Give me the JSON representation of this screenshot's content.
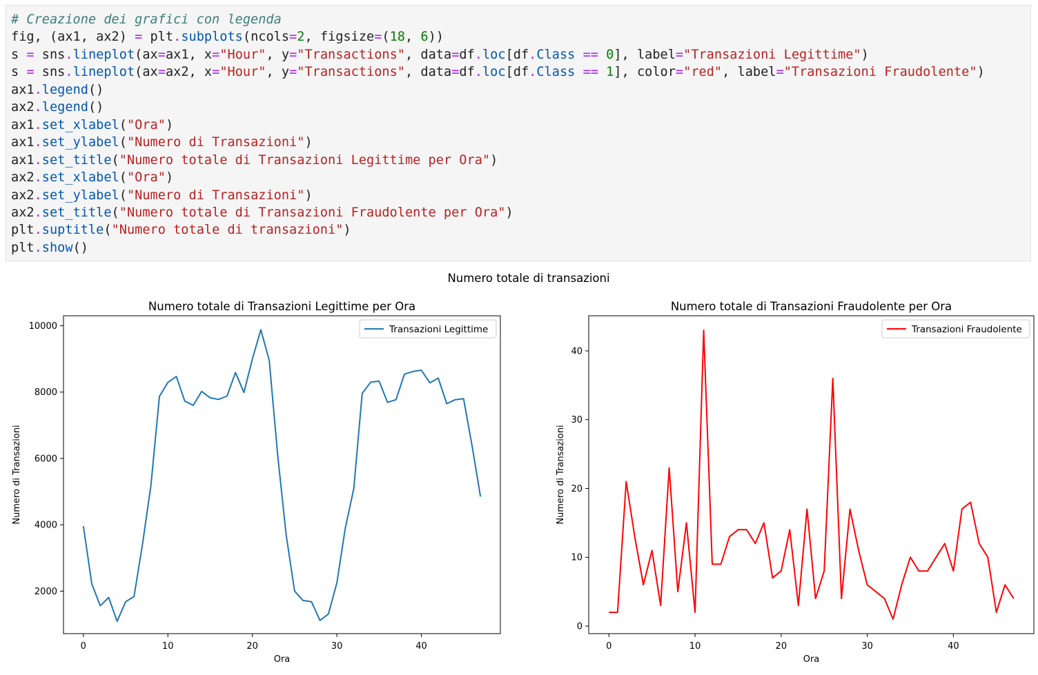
{
  "code": {
    "lines": [
      [
        {
          "c": "cm",
          "t": "# Creazione dei grafici con legenda"
        }
      ],
      [
        {
          "c": "bd",
          "t": "fig, (ax1, ax2) "
        },
        {
          "c": "op",
          "t": "="
        },
        {
          "c": "bd",
          "t": " plt"
        },
        {
          "c": "op",
          "t": "."
        },
        {
          "c": "fn",
          "t": "subplots"
        },
        {
          "c": "bd",
          "t": "(ncols"
        },
        {
          "c": "op",
          "t": "="
        },
        {
          "c": "nm",
          "t": "2"
        },
        {
          "c": "bd",
          "t": ", figsize"
        },
        {
          "c": "op",
          "t": "="
        },
        {
          "c": "bd",
          "t": "("
        },
        {
          "c": "nm",
          "t": "18"
        },
        {
          "c": "bd",
          "t": ", "
        },
        {
          "c": "nm",
          "t": "6"
        },
        {
          "c": "bd",
          "t": "))"
        }
      ],
      [
        {
          "c": "bd",
          "t": "s "
        },
        {
          "c": "op",
          "t": "="
        },
        {
          "c": "bd",
          "t": " sns"
        },
        {
          "c": "op",
          "t": "."
        },
        {
          "c": "fn",
          "t": "lineplot"
        },
        {
          "c": "bd",
          "t": "(ax"
        },
        {
          "c": "op",
          "t": "="
        },
        {
          "c": "bd",
          "t": "ax1, x"
        },
        {
          "c": "op",
          "t": "="
        },
        {
          "c": "st",
          "t": "\"Hour\""
        },
        {
          "c": "bd",
          "t": ", y"
        },
        {
          "c": "op",
          "t": "="
        },
        {
          "c": "st",
          "t": "\"Transactions\""
        },
        {
          "c": "bd",
          "t": ", data"
        },
        {
          "c": "op",
          "t": "="
        },
        {
          "c": "bd",
          "t": "df"
        },
        {
          "c": "op",
          "t": "."
        },
        {
          "c": "fn",
          "t": "loc"
        },
        {
          "c": "bd",
          "t": "[df"
        },
        {
          "c": "op",
          "t": "."
        },
        {
          "c": "fn",
          "t": "Class"
        },
        {
          "c": "bd",
          "t": " "
        },
        {
          "c": "op",
          "t": "=="
        },
        {
          "c": "bd",
          "t": " "
        },
        {
          "c": "nm",
          "t": "0"
        },
        {
          "c": "bd",
          "t": "], label"
        },
        {
          "c": "op",
          "t": "="
        },
        {
          "c": "st",
          "t": "\"Transazioni Legittime\""
        },
        {
          "c": "bd",
          "t": ")"
        }
      ],
      [
        {
          "c": "bd",
          "t": "s "
        },
        {
          "c": "op",
          "t": "="
        },
        {
          "c": "bd",
          "t": " sns"
        },
        {
          "c": "op",
          "t": "."
        },
        {
          "c": "fn",
          "t": "lineplot"
        },
        {
          "c": "bd",
          "t": "(ax"
        },
        {
          "c": "op",
          "t": "="
        },
        {
          "c": "bd",
          "t": "ax2, x"
        },
        {
          "c": "op",
          "t": "="
        },
        {
          "c": "st",
          "t": "\"Hour\""
        },
        {
          "c": "bd",
          "t": ", y"
        },
        {
          "c": "op",
          "t": "="
        },
        {
          "c": "st",
          "t": "\"Transactions\""
        },
        {
          "c": "bd",
          "t": ", data"
        },
        {
          "c": "op",
          "t": "="
        },
        {
          "c": "bd",
          "t": "df"
        },
        {
          "c": "op",
          "t": "."
        },
        {
          "c": "fn",
          "t": "loc"
        },
        {
          "c": "bd",
          "t": "[df"
        },
        {
          "c": "op",
          "t": "."
        },
        {
          "c": "fn",
          "t": "Class"
        },
        {
          "c": "bd",
          "t": " "
        },
        {
          "c": "op",
          "t": "=="
        },
        {
          "c": "bd",
          "t": " "
        },
        {
          "c": "nm",
          "t": "1"
        },
        {
          "c": "bd",
          "t": "], color"
        },
        {
          "c": "op",
          "t": "="
        },
        {
          "c": "st",
          "t": "\"red\""
        },
        {
          "c": "bd",
          "t": ", label"
        },
        {
          "c": "op",
          "t": "="
        },
        {
          "c": "st",
          "t": "\"Transazioni Fraudolente\""
        },
        {
          "c": "bd",
          "t": ")"
        }
      ],
      [
        {
          "c": "bd",
          "t": "ax1"
        },
        {
          "c": "op",
          "t": "."
        },
        {
          "c": "fn",
          "t": "legend"
        },
        {
          "c": "bd",
          "t": "()"
        }
      ],
      [
        {
          "c": "bd",
          "t": "ax2"
        },
        {
          "c": "op",
          "t": "."
        },
        {
          "c": "fn",
          "t": "legend"
        },
        {
          "c": "bd",
          "t": "()"
        }
      ],
      [
        {
          "c": "bd",
          "t": "ax1"
        },
        {
          "c": "op",
          "t": "."
        },
        {
          "c": "fn",
          "t": "set_xlabel"
        },
        {
          "c": "bd",
          "t": "("
        },
        {
          "c": "st",
          "t": "\"Ora\""
        },
        {
          "c": "bd",
          "t": ")"
        }
      ],
      [
        {
          "c": "bd",
          "t": "ax1"
        },
        {
          "c": "op",
          "t": "."
        },
        {
          "c": "fn",
          "t": "set_ylabel"
        },
        {
          "c": "bd",
          "t": "("
        },
        {
          "c": "st",
          "t": "\"Numero di Transazioni\""
        },
        {
          "c": "bd",
          "t": ")"
        }
      ],
      [
        {
          "c": "bd",
          "t": "ax1"
        },
        {
          "c": "op",
          "t": "."
        },
        {
          "c": "fn",
          "t": "set_title"
        },
        {
          "c": "bd",
          "t": "("
        },
        {
          "c": "st",
          "t": "\"Numero totale di Transazioni Legittime per Ora\""
        },
        {
          "c": "bd",
          "t": ")"
        }
      ],
      [
        {
          "c": "bd",
          "t": "ax2"
        },
        {
          "c": "op",
          "t": "."
        },
        {
          "c": "fn",
          "t": "set_xlabel"
        },
        {
          "c": "bd",
          "t": "("
        },
        {
          "c": "st",
          "t": "\"Ora\""
        },
        {
          "c": "bd",
          "t": ")"
        }
      ],
      [
        {
          "c": "bd",
          "t": "ax2"
        },
        {
          "c": "op",
          "t": "."
        },
        {
          "c": "fn",
          "t": "set_ylabel"
        },
        {
          "c": "bd",
          "t": "("
        },
        {
          "c": "st",
          "t": "\"Numero di Transazioni\""
        },
        {
          "c": "bd",
          "t": ")"
        }
      ],
      [
        {
          "c": "bd",
          "t": "ax2"
        },
        {
          "c": "op",
          "t": "."
        },
        {
          "c": "fn",
          "t": "set_title"
        },
        {
          "c": "bd",
          "t": "("
        },
        {
          "c": "st",
          "t": "\"Numero totale di Transazioni Fraudolente per Ora\""
        },
        {
          "c": "bd",
          "t": ")"
        }
      ],
      [
        {
          "c": "bd",
          "t": "plt"
        },
        {
          "c": "op",
          "t": "."
        },
        {
          "c": "fn",
          "t": "suptitle"
        },
        {
          "c": "bd",
          "t": "("
        },
        {
          "c": "st",
          "t": "\"Numero totale di transazioni\""
        },
        {
          "c": "bd",
          "t": ")"
        }
      ],
      [
        {
          "c": "bd",
          "t": "plt"
        },
        {
          "c": "op",
          "t": "."
        },
        {
          "c": "fn",
          "t": "show"
        },
        {
          "c": "bd",
          "t": "()"
        }
      ]
    ]
  },
  "figure": {
    "suptitle": "Numero totale di transazioni"
  },
  "chart_data": [
    {
      "type": "line",
      "title": "Numero totale di Transazioni Legittime per Ora",
      "xlabel": "Ora",
      "ylabel": "Numero di Transazioni",
      "xlim": [
        -2.35,
        49.35
      ],
      "ylim": [
        720,
        10300
      ],
      "xticks": [
        0,
        10,
        20,
        30,
        40
      ],
      "xtick_labels": [
        "0",
        "10",
        "20",
        "30",
        "40"
      ],
      "yticks": [
        2000,
        4000,
        6000,
        8000,
        10000
      ],
      "ytick_labels": [
        "2000",
        "4000",
        "6000",
        "8000",
        "10000"
      ],
      "legend_position": "upper right",
      "color": "#1f77b4",
      "series": [
        {
          "name": "Transazioni Legittime",
          "x": [
            0,
            1,
            2,
            3,
            4,
            5,
            6,
            7,
            8,
            9,
            10,
            11,
            12,
            13,
            14,
            15,
            16,
            17,
            18,
            19,
            20,
            21,
            22,
            23,
            24,
            25,
            26,
            27,
            28,
            29,
            30,
            31,
            32,
            33,
            34,
            35,
            36,
            37,
            38,
            39,
            40,
            41,
            42,
            43,
            44,
            45,
            46,
            47
          ],
          "y": [
            3960,
            2220,
            1560,
            1810,
            1090,
            1680,
            1840,
            3420,
            5190,
            7870,
            8290,
            8470,
            7730,
            7600,
            8020,
            7830,
            7780,
            7880,
            8590,
            7990,
            8990,
            9880,
            8960,
            6090,
            3700,
            2000,
            1720,
            1680,
            1120,
            1310,
            2250,
            3900,
            5090,
            7960,
            8300,
            8330,
            7690,
            7770,
            8540,
            8620,
            8660,
            8280,
            8420,
            7650,
            7770,
            7800,
            6380,
            4850
          ]
        }
      ]
    },
    {
      "type": "line",
      "title": "Numero totale di Transazioni Fraudolente per Ora",
      "xlabel": "Ora",
      "ylabel": "Numero di Transazioni",
      "xlim": [
        -2.35,
        49.35
      ],
      "ylim": [
        -1.1,
        45.1
      ],
      "xticks": [
        0,
        10,
        20,
        30,
        40
      ],
      "xtick_labels": [
        "0",
        "10",
        "20",
        "30",
        "40"
      ],
      "yticks": [
        0,
        10,
        20,
        30,
        40
      ],
      "ytick_labels": [
        "0",
        "10",
        "20",
        "30",
        "40"
      ],
      "legend_position": "upper right",
      "color": "#ff0000",
      "series": [
        {
          "name": "Transazioni Fraudolente",
          "x": [
            0,
            1,
            2,
            3,
            4,
            5,
            6,
            7,
            8,
            9,
            10,
            11,
            12,
            13,
            14,
            15,
            16,
            17,
            18,
            19,
            20,
            21,
            22,
            23,
            24,
            25,
            26,
            27,
            28,
            29,
            30,
            31,
            32,
            33,
            34,
            35,
            36,
            37,
            38,
            39,
            40,
            41,
            42,
            43,
            44,
            45,
            46,
            47
          ],
          "y": [
            2,
            2,
            21,
            13,
            6,
            11,
            3,
            23,
            5,
            15,
            2,
            43,
            9,
            9,
            13,
            14,
            14,
            12,
            15,
            7,
            8,
            14,
            3,
            17,
            4,
            8,
            36,
            4,
            17,
            11,
            6,
            5,
            4,
            1,
            6,
            10,
            8,
            8,
            10,
            12,
            8,
            17,
            18,
            12,
            10,
            2,
            6,
            4
          ]
        }
      ]
    }
  ]
}
